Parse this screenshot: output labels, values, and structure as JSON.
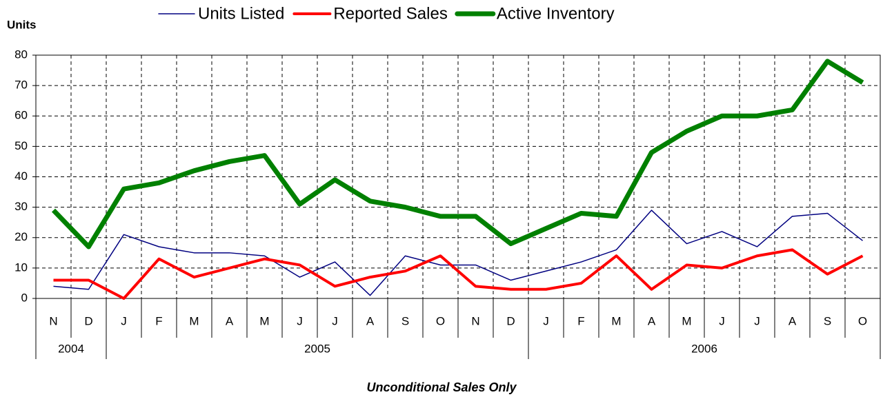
{
  "chart_data": {
    "type": "line",
    "y_label": "Units",
    "footnote": "Unconditional Sales Only",
    "categories": [
      "N",
      "D",
      "J",
      "F",
      "M",
      "A",
      "M",
      "J",
      "J",
      "A",
      "S",
      "O",
      "N",
      "D",
      "J",
      "F",
      "M",
      "A",
      "M",
      "J",
      "J",
      "A",
      "S",
      "O"
    ],
    "category_groups": [
      {
        "label": "2004",
        "count": 2
      },
      {
        "label": "2005",
        "count": 12
      },
      {
        "label": "2006",
        "count": 10
      }
    ],
    "series": [
      {
        "name": "Units Listed",
        "color": "#000080",
        "width": 1.5,
        "values": [
          4,
          3,
          21,
          17,
          15,
          15,
          14,
          7,
          12,
          1,
          14,
          11,
          11,
          6,
          9,
          12,
          16,
          29,
          18,
          22,
          17,
          27,
          28,
          19
        ]
      },
      {
        "name": "Reported Sales",
        "color": "#ff0000",
        "width": 4,
        "values": [
          6,
          6,
          0,
          13,
          7,
          10,
          13,
          11,
          4,
          7,
          9,
          14,
          4,
          3,
          3,
          5,
          14,
          3,
          11,
          10,
          14,
          16,
          8,
          14
        ]
      },
      {
        "name": "Active Inventory",
        "color": "#008000",
        "width": 7,
        "values": [
          29,
          17,
          36,
          38,
          42,
          45,
          47,
          31,
          39,
          32,
          30,
          27,
          27,
          18,
          23,
          28,
          27,
          48,
          55,
          60,
          60,
          62,
          78,
          71
        ]
      }
    ],
    "ylim": [
      0,
      80
    ],
    "yticks": [
      0,
      10,
      20,
      30,
      40,
      50,
      60,
      70,
      80
    ],
    "grid": true
  }
}
